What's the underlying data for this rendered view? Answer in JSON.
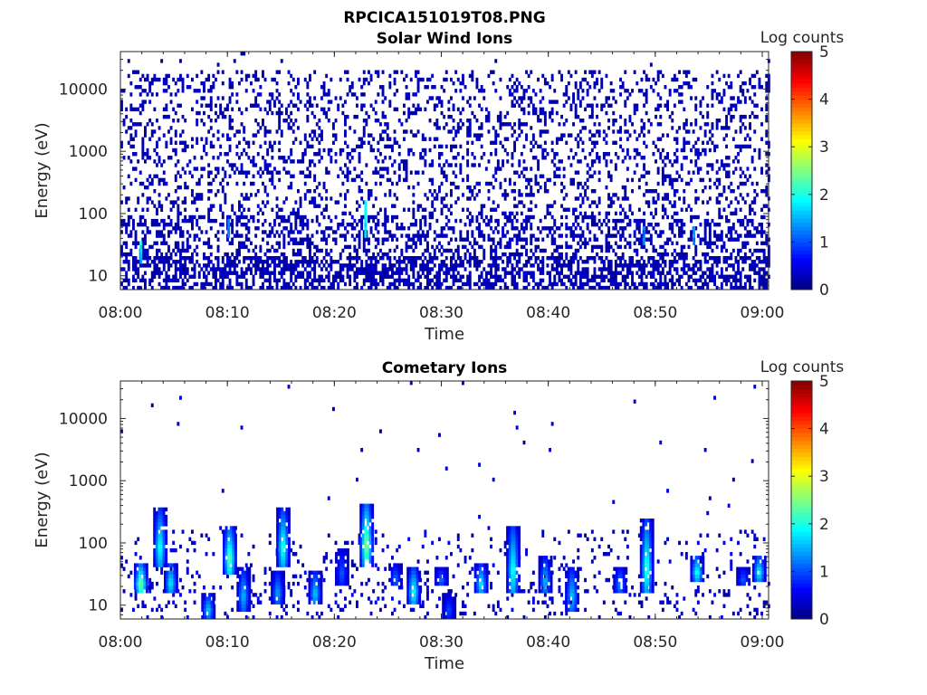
{
  "figure_title": "RPCICA151019T08.PNG",
  "chart_data": [
    {
      "type": "heatmap",
      "title": "Solar Wind Ions",
      "xlabel": "Time",
      "ylabel": "Energy (eV)",
      "x_ticks": [
        "08:00",
        "08:10",
        "08:20",
        "08:30",
        "08:40",
        "08:50",
        "09:00"
      ],
      "xlim": [
        "08:00",
        "09:00"
      ],
      "y_scale": "log",
      "y_ticks": [
        "10",
        "100",
        "1000",
        "10000"
      ],
      "ylim": [
        6,
        40000
      ],
      "colorbar": {
        "label": "Log counts",
        "min": 0,
        "max": 5,
        "ticks": [
          "0",
          "1",
          "2",
          "3",
          "4",
          "5"
        ],
        "colormap": "jet"
      },
      "features": [
        {
          "time_min": 1.8,
          "energy_lo": 15,
          "energy_hi": 35,
          "log_counts": 1.8
        },
        {
          "time_min": 10.0,
          "energy_lo": 40,
          "energy_hi": 80,
          "log_counts": 1.4
        },
        {
          "time_min": 22.8,
          "energy_lo": 40,
          "energy_hi": 170,
          "log_counts": 1.8
        },
        {
          "time_min": 48.8,
          "energy_lo": 30,
          "energy_hi": 60,
          "log_counts": 1.2
        },
        {
          "time_min": 53.5,
          "energy_lo": 30,
          "energy_hi": 60,
          "log_counts": 1.3
        }
      ],
      "background": {
        "log_counts": 0.1,
        "energy_range": [
          6,
          20000
        ]
      }
    },
    {
      "type": "heatmap",
      "title": "Cometary Ions",
      "xlabel": "Time",
      "ylabel": "Energy (eV)",
      "x_ticks": [
        "08:00",
        "08:10",
        "08:20",
        "08:30",
        "08:40",
        "08:50",
        "09:00"
      ],
      "xlim": [
        "08:00",
        "09:00"
      ],
      "y_scale": "log",
      "y_ticks": [
        "10",
        "100",
        "1000",
        "10000"
      ],
      "ylim": [
        6,
        40000
      ],
      "colorbar": {
        "label": "Log counts",
        "min": 0,
        "max": 5,
        "ticks": [
          "0",
          "1",
          "2",
          "3",
          "4",
          "5"
        ],
        "colormap": "jet"
      },
      "bursts": [
        {
          "time_min": 1.7,
          "energy_lo": 15,
          "energy_hi": 45,
          "log_counts": 2.8
        },
        {
          "time_min": 3.5,
          "energy_lo": 40,
          "energy_hi": 350,
          "log_counts": 2.2
        },
        {
          "time_min": 4.5,
          "energy_lo": 15,
          "energy_hi": 50,
          "log_counts": 2.0
        },
        {
          "time_min": 8.0,
          "energy_lo": 6,
          "energy_hi": 15,
          "log_counts": 1.8
        },
        {
          "time_min": 10.0,
          "energy_lo": 30,
          "energy_hi": 180,
          "log_counts": 2.6
        },
        {
          "time_min": 11.3,
          "energy_lo": 8,
          "energy_hi": 40,
          "log_counts": 1.7
        },
        {
          "time_min": 14.5,
          "energy_lo": 10,
          "energy_hi": 35,
          "log_counts": 1.6
        },
        {
          "time_min": 15.0,
          "energy_lo": 40,
          "energy_hi": 350,
          "log_counts": 2.3
        },
        {
          "time_min": 18.0,
          "energy_lo": 10,
          "energy_hi": 35,
          "log_counts": 1.8
        },
        {
          "time_min": 20.5,
          "energy_lo": 20,
          "energy_hi": 80,
          "log_counts": 1.2
        },
        {
          "time_min": 22.8,
          "energy_lo": 40,
          "energy_hi": 450,
          "log_counts": 2.8
        },
        {
          "time_min": 25.5,
          "energy_lo": 20,
          "energy_hi": 45,
          "log_counts": 1.3
        },
        {
          "time_min": 27.2,
          "energy_lo": 10,
          "energy_hi": 40,
          "log_counts": 2.2
        },
        {
          "time_min": 29.8,
          "energy_lo": 20,
          "energy_hi": 40,
          "log_counts": 1.3
        },
        {
          "time_min": 30.5,
          "energy_lo": 6,
          "energy_hi": 15,
          "log_counts": 1.1
        },
        {
          "time_min": 33.5,
          "energy_lo": 15,
          "energy_hi": 45,
          "log_counts": 2.0
        },
        {
          "time_min": 36.5,
          "energy_lo": 15,
          "energy_hi": 200,
          "log_counts": 2.2
        },
        {
          "time_min": 39.5,
          "energy_lo": 15,
          "energy_hi": 60,
          "log_counts": 1.7
        },
        {
          "time_min": 42.0,
          "energy_lo": 8,
          "energy_hi": 40,
          "log_counts": 1.8
        },
        {
          "time_min": 46.5,
          "energy_lo": 15,
          "energy_hi": 40,
          "log_counts": 1.5
        },
        {
          "time_min": 49.0,
          "energy_lo": 15,
          "energy_hi": 250,
          "log_counts": 2.3
        },
        {
          "time_min": 53.7,
          "energy_lo": 25,
          "energy_hi": 60,
          "log_counts": 2.2
        },
        {
          "time_min": 58.0,
          "energy_lo": 20,
          "energy_hi": 40,
          "log_counts": 1.2
        },
        {
          "time_min": 59.5,
          "energy_lo": 25,
          "energy_hi": 60,
          "log_counts": 2.1
        }
      ]
    }
  ]
}
